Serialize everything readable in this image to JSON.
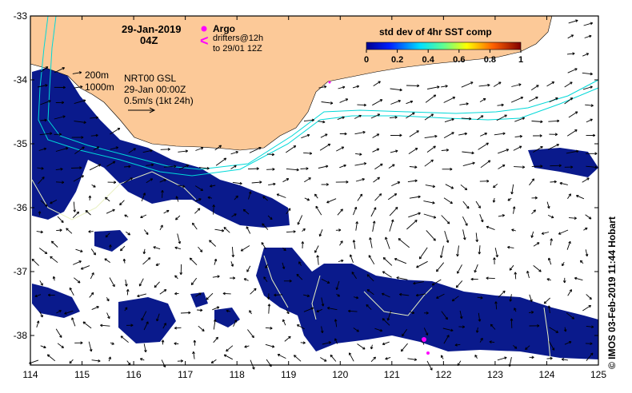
{
  "title": {
    "date": "29-Jan-2019",
    "time": "04Z"
  },
  "legend": {
    "argo_label": "Argo",
    "drifters_line1": "drifters@12h",
    "drifters_line2": "to 29/01 12Z",
    "argo_color": "#ff00ff"
  },
  "colorbar": {
    "label": "std dev of 4hr SST comp",
    "ticks": [
      "0",
      "0.2",
      "0.4",
      "0.6",
      "0.8",
      "1"
    ]
  },
  "info": {
    "contour_200": "200m",
    "contour_1000": "1000m",
    "product": "NRT00 GSL",
    "datetime": "29-Jan 00:00Z",
    "scale": "0.5m/s (1kt 24h)"
  },
  "x_ticks": [
    "114",
    "115",
    "116",
    "117",
    "118",
    "119",
    "120",
    "121",
    "122",
    "123",
    "124",
    "125"
  ],
  "y_ticks": [
    "-33",
    "-34",
    "-35",
    "-36",
    "-37",
    "-38"
  ],
  "credit": "© IMOS 03-Feb-2019 11:44 Hobart",
  "colors": {
    "land": "#fcc998",
    "sst_dark": "#0a1a8c",
    "contour": "#00e0e0",
    "vector": "#000000"
  }
}
